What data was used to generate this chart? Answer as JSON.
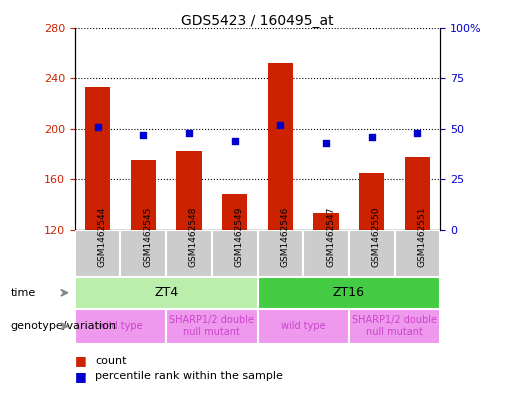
{
  "title": "GDS5423 / 160495_at",
  "samples": [
    "GSM1462544",
    "GSM1462545",
    "GSM1462548",
    "GSM1462549",
    "GSM1462546",
    "GSM1462547",
    "GSM1462550",
    "GSM1462551"
  ],
  "counts": [
    233,
    175,
    182,
    148,
    252,
    133,
    165,
    178
  ],
  "percentile_ranks": [
    51,
    47,
    48,
    44,
    52,
    43,
    46,
    48
  ],
  "ymin": 120,
  "ymax": 280,
  "yticks": [
    120,
    160,
    200,
    240,
    280
  ],
  "y2min": 0,
  "y2max": 100,
  "y2ticks": [
    0,
    25,
    50,
    75,
    100
  ],
  "bar_color": "#cc2200",
  "dot_color": "#0000cc",
  "bar_width": 0.55,
  "time_spans": [
    {
      "label": "ZT4",
      "start": 0,
      "end": 3,
      "color": "#bbeeaa"
    },
    {
      "label": "ZT16",
      "start": 4,
      "end": 7,
      "color": "#44cc44"
    }
  ],
  "geno_spans": [
    {
      "label": "wild type",
      "start": 0,
      "end": 1,
      "color": "#ee99ee"
    },
    {
      "label": "SHARP1/2 double\nnull mutant",
      "start": 2,
      "end": 3,
      "color": "#ee99ee"
    },
    {
      "label": "wild type",
      "start": 4,
      "end": 5,
      "color": "#ee99ee"
    },
    {
      "label": "SHARP1/2 double\nnull mutant",
      "start": 6,
      "end": 7,
      "color": "#ee99ee"
    }
  ],
  "legend_count_label": "count",
  "legend_pct_label": "percentile rank within the sample",
  "time_row_label": "time",
  "geno_row_label": "genotype/variation",
  "left_tick_color": "#cc2200",
  "right_tick_color": "#0000cc",
  "bg_color": "#ffffff",
  "fig_bg_color": "#ffffff",
  "sample_box_color": "#cccccc",
  "sample_box_edge": "#888888",
  "geno_text_color": "#cc44cc"
}
